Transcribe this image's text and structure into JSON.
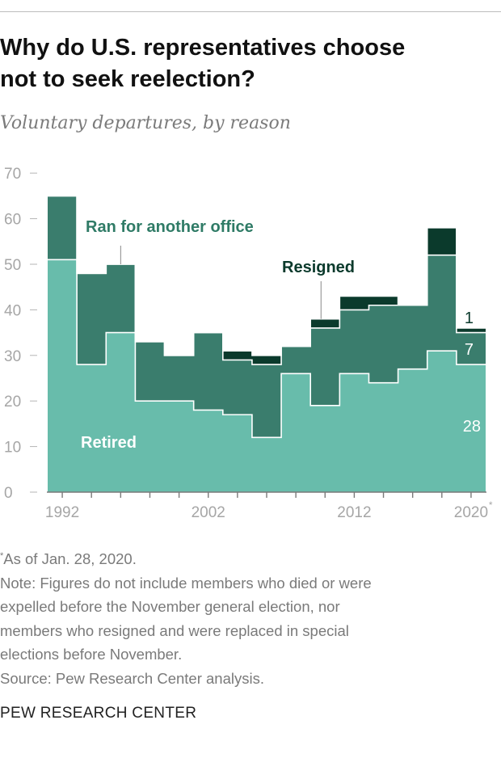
{
  "header": {
    "title_line1": "Why do U.S. representatives choose",
    "title_line2": "not to seek reelection?",
    "subtitle": "Voluntary departures, by reason"
  },
  "colors": {
    "retired": "#68bcab",
    "ran_for_another_office": "#3a7d6d",
    "resigned": "#0b3a2c",
    "retired_label": "#ffffff",
    "ran_label": "#2f7b66",
    "resigned_label": "#0b3a2c",
    "axis_text": "#a6a6a6"
  },
  "chart_data": {
    "type": "area",
    "title": "Why do U.S. representatives choose not to seek reelection?",
    "subtitle": "Voluntary departures, by reason",
    "x": [
      1992,
      1994,
      1996,
      1998,
      2000,
      2002,
      2004,
      2006,
      2008,
      2010,
      2012,
      2014,
      2016,
      2018,
      2020
    ],
    "series": [
      {
        "name": "Retired",
        "values": [
          51,
          28,
          35,
          20,
          20,
          18,
          17,
          12,
          26,
          19,
          26,
          24,
          27,
          31,
          28
        ]
      },
      {
        "name": "Ran for another office",
        "values": [
          14,
          20,
          15,
          13,
          10,
          17,
          12,
          16,
          6,
          17,
          14,
          17,
          14,
          21,
          7
        ]
      },
      {
        "name": "Resigned",
        "values": [
          0,
          0,
          0,
          0,
          0,
          0,
          2,
          2,
          0,
          2,
          3,
          2,
          0,
          6,
          1
        ]
      }
    ],
    "ylim": [
      0,
      70
    ],
    "yticks": [
      0,
      10,
      20,
      30,
      40,
      50,
      60,
      70
    ],
    "xtick_labels": [
      "1992",
      "2002",
      "2012",
      "2020"
    ],
    "xtick_suffix_2020": "*",
    "xlabel": "",
    "ylabel": "",
    "grid": false,
    "series_labels": {
      "retired": "Retired",
      "ran": "Ran for another office",
      "resigned": "Resigned"
    },
    "value_labels": {
      "retired_2020": "28",
      "ran_2020": "7",
      "resigned_2020": "1"
    }
  },
  "notes": {
    "asterisk_mark": "*",
    "asterisk": "As of Jan. 28, 2020.",
    "note_lines": [
      "Note: Figures do not include members who died or were",
      "expelled before the November general election, nor",
      "members who resigned and were replaced in special",
      "elections before November."
    ],
    "source": "Source: Pew Research Center analysis."
  },
  "footer": {
    "brand": "PEW RESEARCH CENTER"
  }
}
